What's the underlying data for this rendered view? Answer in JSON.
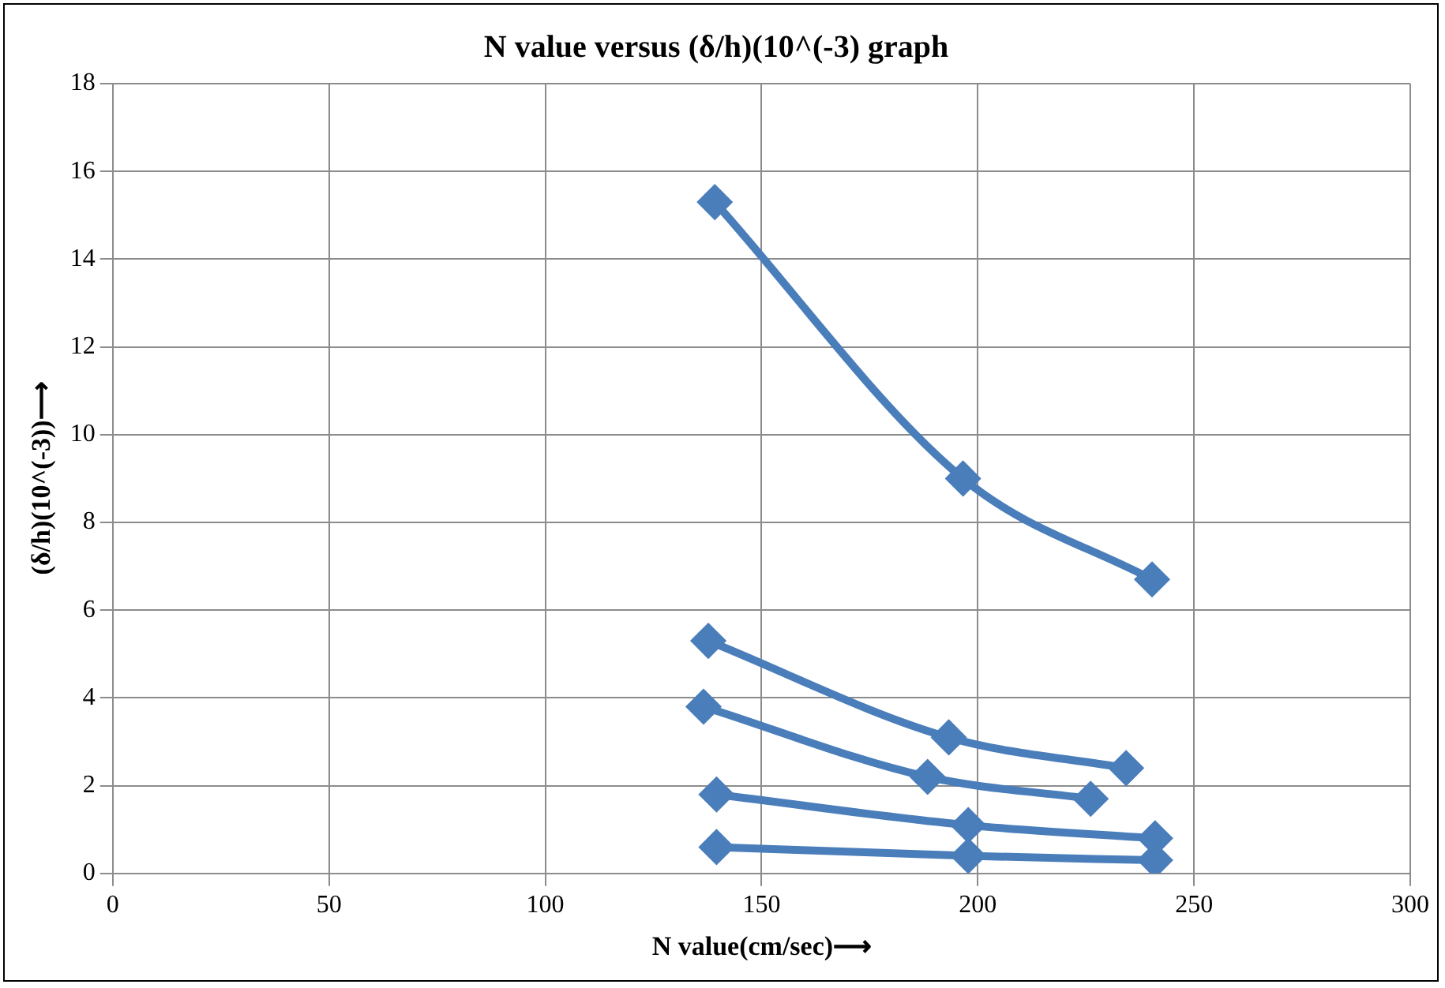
{
  "chart_data": {
    "type": "line",
    "title": "N value versus (δ/h)(10^(-3) graph",
    "xlabel": "N value(cm/sec)⟶",
    "ylabel": "(δ/h)(10^(-3))⟶",
    "series": [
      {
        "color": "#4a7ebb",
        "x": [
          139.2,
          196.6,
          240.3
        ],
        "values": [
          15.3,
          9.0,
          6.7
        ]
      },
      {
        "color": "#4a7ebb",
        "x": [
          137.7,
          193.3,
          234.3
        ],
        "values": [
          5.3,
          3.1,
          2.4
        ]
      },
      {
        "color": "#4a7ebb",
        "x": [
          136.6,
          188.4,
          226.1
        ],
        "values": [
          3.8,
          2.2,
          1.7
        ]
      },
      {
        "color": "#4a7ebb",
        "x": [
          139.6,
          197.8,
          241.0
        ],
        "values": [
          1.8,
          1.1,
          0.8
        ]
      },
      {
        "color": "#4a7ebb",
        "x": [
          139.6,
          197.8,
          241.0
        ],
        "values": [
          0.6,
          0.4,
          0.3
        ]
      }
    ],
    "xlim": [
      0,
      300
    ],
    "xticks": [
      0,
      50,
      100,
      150,
      200,
      250,
      300
    ],
    "ylim": [
      0,
      18
    ],
    "yticks": [
      0,
      2,
      4,
      6,
      8,
      10,
      12,
      14,
      16,
      18
    ],
    "grid": true,
    "legend": false,
    "marker": "diamond",
    "line_style": "solid"
  }
}
